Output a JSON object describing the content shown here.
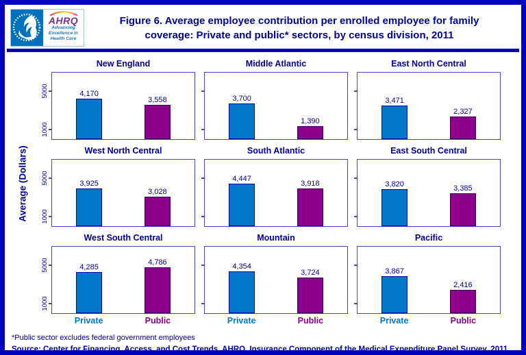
{
  "header": {
    "logo": {
      "ahrq_text": "AHRQ",
      "tagline_lines": [
        "Advancing",
        "Excellence in",
        "Health Care"
      ]
    },
    "title": "Figure 6. Average employee contribution per enrolled employee for family coverage: Private and public* sectors, by census division, 2011"
  },
  "chart_data": {
    "type": "bar",
    "title": "Figure 6. Average employee contribution per enrolled employee for family coverage: Private and public* sectors, by census division, 2011",
    "ylabel": "Average (Dollars)",
    "yticks": [
      1000,
      5000
    ],
    "ylim": [
      0,
      6900
    ],
    "grid": false,
    "layout": "3x3 small multiples by census division; y tick labels only on left column; x labels only on bottom row",
    "series_labels": [
      "Private",
      "Public"
    ],
    "colors": {
      "private_bar": "#0077C8",
      "public_bar": "#8B008B",
      "navy_text": "#000099",
      "frame_border": "#0000BE"
    },
    "categories": [
      "New England",
      "Middle Atlantic",
      "East North Central",
      "West North Central",
      "South Atlantic",
      "East South Central",
      "West South Central",
      "Mountain",
      "Pacific"
    ],
    "series": [
      {
        "name": "Private",
        "values": [
          4170,
          3700,
          3471,
          3925,
          4447,
          3820,
          4285,
          4354,
          3867
        ]
      },
      {
        "name": "Public",
        "values": [
          3558,
          1390,
          2327,
          3028,
          3918,
          3385,
          4786,
          3724,
          2416
        ]
      }
    ],
    "divisions": [
      {
        "name": "New England",
        "private": 4170,
        "private_label": "4,170",
        "public": 3558,
        "public_label": "3,558"
      },
      {
        "name": "Middle Atlantic",
        "private": 3700,
        "private_label": "3,700",
        "public": 1390,
        "public_label": "1,390"
      },
      {
        "name": "East North Central",
        "private": 3471,
        "private_label": "3,471",
        "public": 2327,
        "public_label": "2,327"
      },
      {
        "name": "West North Central",
        "private": 3925,
        "private_label": "3,925",
        "public": 3028,
        "public_label": "3,028"
      },
      {
        "name": "South Atlantic",
        "private": 4447,
        "private_label": "4,447",
        "public": 3918,
        "public_label": "3,918"
      },
      {
        "name": "East South Central",
        "private": 3820,
        "private_label": "3,820",
        "public": 3385,
        "public_label": "3,385"
      },
      {
        "name": "West South Central",
        "private": 4285,
        "private_label": "4,285",
        "public": 4786,
        "public_label": "4,786"
      },
      {
        "name": "Mountain",
        "private": 4354,
        "private_label": "4,354",
        "public": 3724,
        "public_label": "3,724"
      },
      {
        "name": "Pacific",
        "private": 3867,
        "private_label": "3,867",
        "public": 2416,
        "public_label": "2,416"
      }
    ]
  },
  "footer": {
    "footnote": "*Public sector excludes federal government employees",
    "source": "Source: Center for Financing, Access, and Cost Trends, AHRQ, Insurance Component of the Medical Expenditure Panel Survey, 2011"
  }
}
